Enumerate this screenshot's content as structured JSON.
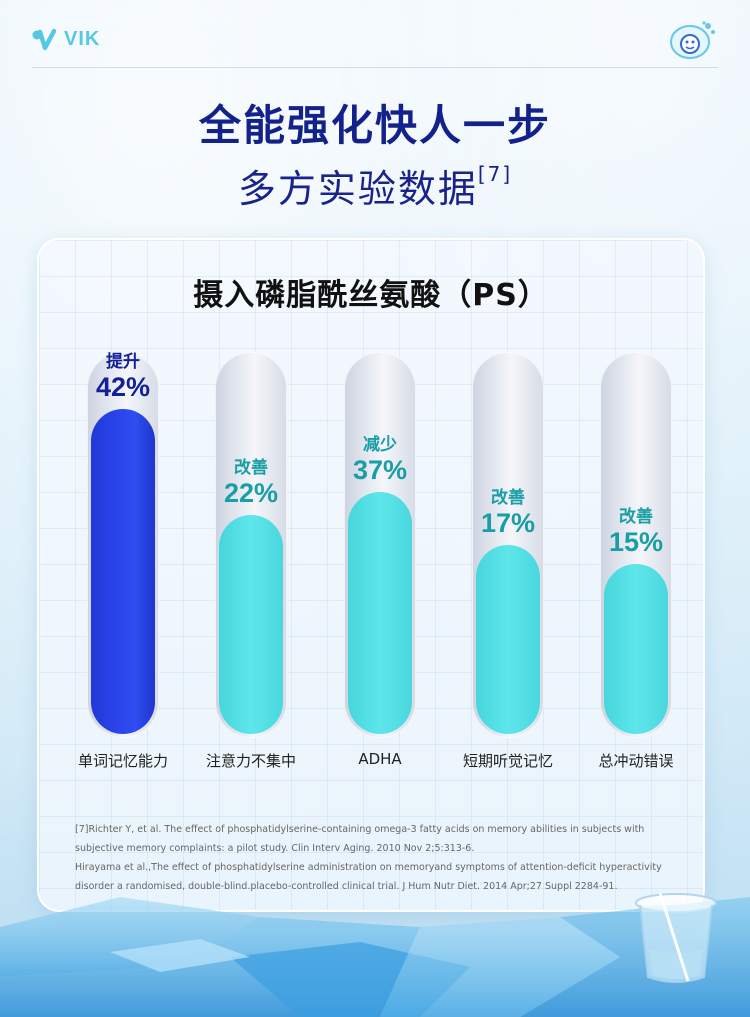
{
  "brand": {
    "name": "VIK",
    "logo_icon": "v-logo-icon",
    "mascot_icon": "mascot-icon",
    "accent": "#56c8e6"
  },
  "header": {
    "title": "全能强化快人一步",
    "subtitle": "多方实验数据",
    "subtitle_ref": "[7]"
  },
  "panel": {
    "title": "摄入磷脂酰丝氨酸（PS）",
    "items": [
      {
        "label": "单词记忆能力",
        "verb": "提升",
        "value_text": "42%",
        "level": 0.86,
        "color": "#2b46ec",
        "text_color": "#142096"
      },
      {
        "label": "注意力不集中",
        "verb": "改善",
        "value_text": "22%",
        "level": 0.58,
        "color": "#5ee6ea",
        "text_color": "#1a9ea5"
      },
      {
        "label": "ADHA",
        "verb": "减少",
        "value_text": "37%",
        "level": 0.64,
        "color": "#5ee6ea",
        "text_color": "#1a9ea5"
      },
      {
        "label": "短期听觉记忆",
        "verb": "改善",
        "value_text": "17%",
        "level": 0.5,
        "color": "#5ee6ea",
        "text_color": "#1a9ea5"
      },
      {
        "label": "总冲动错误",
        "verb": "改善",
        "value_text": "15%",
        "level": 0.45,
        "color": "#5ee6ea",
        "text_color": "#1a9ea5"
      }
    ],
    "references": [
      "[7]Richter Y, et al. The effect of phosphatidylserine-containing omega-3 fatty acids on memory abilities in subjects with subjective memory complaints: a pilot study. Clin Interv Aging. 2010 Nov 2;5:313-6.",
      "Hirayama et al.,The effect of phosphatidylserine administration on memoryand symptoms of attention-deficit hyperactivity disorder a randomised, double-blind.placebo-controlled clinical trial. J Hum Nutr Diet. 2014 Apr;27 Suppl 2284-91."
    ]
  }
}
